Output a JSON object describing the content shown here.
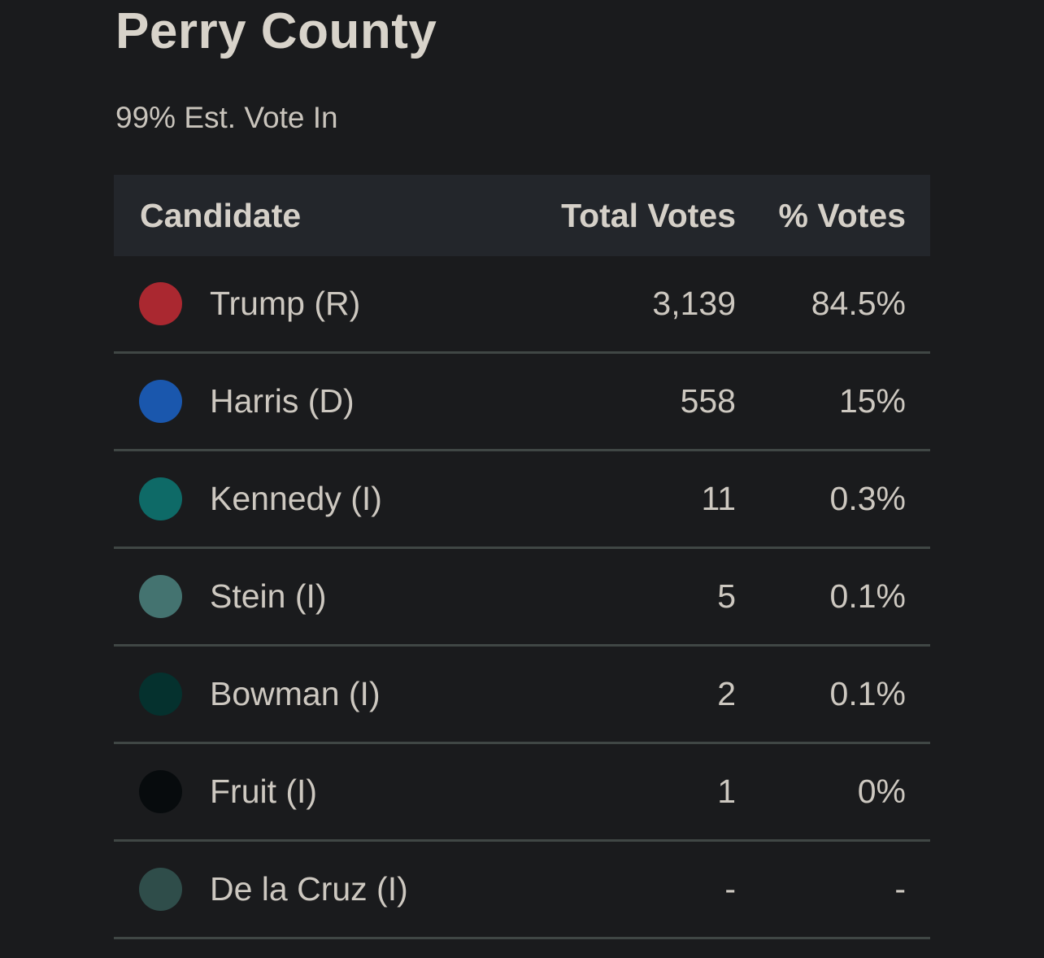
{
  "page": {
    "background_color": "#1a1b1d",
    "title": "Perry County",
    "subtitle": "99% Est. Vote In"
  },
  "table": {
    "columns": {
      "candidate": "Candidate",
      "total_votes": "Total Votes",
      "pct_votes": "% Votes"
    },
    "header_bg_color": "#23262b",
    "divider_color": "#404745",
    "rows": [
      {
        "candidate": "Trump (R)",
        "total_votes": "3,139",
        "pct_votes": "84.5%",
        "dot_color": "#aa2830"
      },
      {
        "candidate": "Harris (D)",
        "total_votes": "558",
        "pct_votes": "15%",
        "dot_color": "#1a57ad"
      },
      {
        "candidate": "Kennedy (I)",
        "total_votes": "11",
        "pct_votes": "0.3%",
        "dot_color": "#0e6a67"
      },
      {
        "candidate": "Stein (I)",
        "total_votes": "5",
        "pct_votes": "0.1%",
        "dot_color": "#447370"
      },
      {
        "candidate": "Bowman (I)",
        "total_votes": "2",
        "pct_votes": "0.1%",
        "dot_color": "#05312e"
      },
      {
        "candidate": "Fruit (I)",
        "total_votes": "1",
        "pct_votes": "0%",
        "dot_color": "#070b0d"
      },
      {
        "candidate": "De la Cruz (I)",
        "total_votes": "-",
        "pct_votes": "-",
        "dot_color": "#2f4d4a"
      }
    ]
  }
}
